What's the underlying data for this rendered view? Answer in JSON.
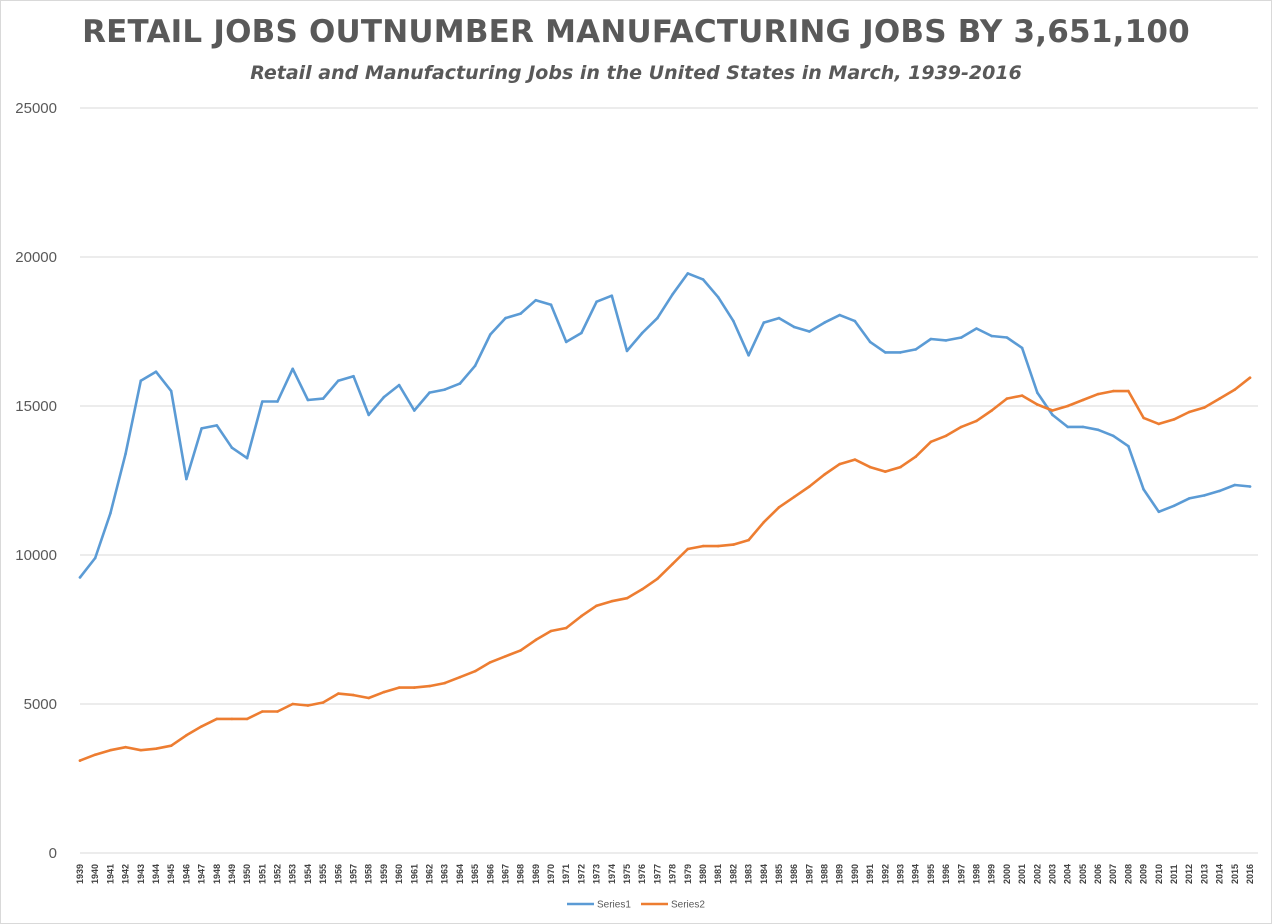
{
  "chart_data": {
    "type": "line",
    "title": "RETAIL JOBS OUTNUMBER MANUFACTURING JOBS BY 3,651,100",
    "subtitle": "Retail and Manufacturing Jobs in the United States in March, 1939-2016",
    "xlabel": "",
    "ylabel": "",
    "ylim": [
      0,
      25000
    ],
    "yticks": [
      0,
      5000,
      10000,
      15000,
      20000,
      25000
    ],
    "grid": "horizontal",
    "legend_position": "bottom",
    "categories": [
      "1939",
      "1940",
      "1941",
      "1942",
      "1943",
      "1944",
      "1945",
      "1946",
      "1947",
      "1948",
      "1949",
      "1950",
      "1951",
      "1952",
      "1953",
      "1954",
      "1955",
      "1956",
      "1957",
      "1958",
      "1959",
      "1960",
      "1961",
      "1962",
      "1963",
      "1964",
      "1965",
      "1966",
      "1967",
      "1968",
      "1969",
      "1970",
      "1971",
      "1972",
      "1973",
      "1974",
      "1975",
      "1976",
      "1977",
      "1978",
      "1979",
      "1980",
      "1981",
      "1982",
      "1983",
      "1984",
      "1985",
      "1986",
      "1987",
      "1988",
      "1989",
      "1990",
      "1991",
      "1992",
      "1993",
      "1994",
      "1995",
      "1996",
      "1997",
      "1998",
      "1999",
      "2000",
      "2001",
      "2002",
      "2003",
      "2004",
      "2005",
      "2006",
      "2007",
      "2008",
      "2009",
      "2010",
      "2011",
      "2012",
      "2013",
      "2014",
      "2015",
      "2016"
    ],
    "series": [
      {
        "name": "Series1",
        "color": "#5b9bd5",
        "values": [
          9250,
          9900,
          11400,
          13400,
          15850,
          16150,
          15500,
          12550,
          14250,
          14350,
          13600,
          13250,
          15150,
          15150,
          16250,
          15200,
          15250,
          15850,
          16000,
          14700,
          15300,
          15700,
          14850,
          15450,
          15550,
          15750,
          16350,
          17400,
          17950,
          18100,
          18550,
          18400,
          17150,
          17450,
          18500,
          18700,
          16850,
          17450,
          17950,
          18750,
          19450,
          19250,
          18650,
          17850,
          16700,
          17800,
          17950,
          17650,
          17500,
          17800,
          18050,
          17850,
          17150,
          16800,
          16800,
          16900,
          17250,
          17200,
          17300,
          17600,
          17350,
          17300,
          16950,
          15450,
          14700,
          14300,
          14300,
          14200,
          14000,
          13650,
          12200,
          11450,
          11650,
          11900,
          12000,
          12150,
          12350,
          12300
        ]
      },
      {
        "name": "Series2",
        "color": "#ed7d31",
        "values": [
          3100,
          3300,
          3450,
          3550,
          3450,
          3500,
          3600,
          3950,
          4250,
          4500,
          4500,
          4500,
          4750,
          4750,
          5000,
          4950,
          5050,
          5350,
          5300,
          5200,
          5400,
          5550,
          5550,
          5600,
          5700,
          5900,
          6100,
          6400,
          6600,
          6800,
          7150,
          7450,
          7550,
          7950,
          8300,
          8450,
          8550,
          8850,
          9200,
          9700,
          10200,
          10300,
          10300,
          10350,
          10500,
          11100,
          11600,
          11950,
          12300,
          12700,
          13050,
          13200,
          12950,
          12800,
          12950,
          13300,
          13800,
          14000,
          14300,
          14500,
          14850,
          15250,
          15350,
          15050,
          14850,
          15000,
          15200,
          15400,
          15500,
          15500,
          14600,
          14400,
          14550,
          14800,
          14950,
          15250,
          15550,
          15950
        ]
      }
    ]
  }
}
